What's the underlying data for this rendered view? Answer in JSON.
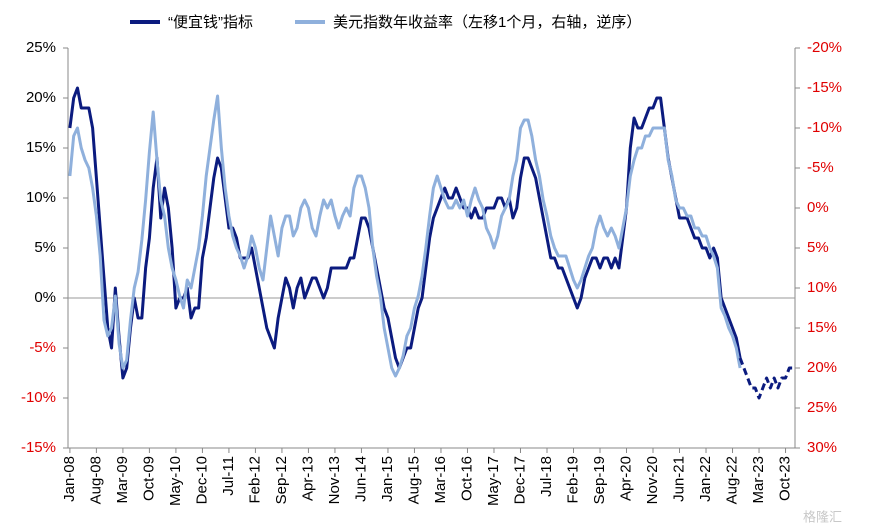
{
  "chart_data": {
    "type": "line",
    "watermark": "格隆汇",
    "categories": [
      "Jan-08",
      null,
      null,
      null,
      null,
      null,
      null,
      "Aug-08",
      null,
      null,
      null,
      null,
      null,
      null,
      "Mar-09",
      null,
      null,
      null,
      null,
      null,
      null,
      "Oct-09",
      null,
      null,
      null,
      null,
      null,
      null,
      "May-10",
      null,
      null,
      null,
      null,
      null,
      null,
      "Dec-10",
      null,
      null,
      null,
      null,
      null,
      null,
      "Jul-11",
      null,
      null,
      null,
      null,
      null,
      null,
      "Feb-12",
      null,
      null,
      null,
      null,
      null,
      null,
      "Sep-12",
      null,
      null,
      null,
      null,
      null,
      null,
      "Apr-13",
      null,
      null,
      null,
      null,
      null,
      null,
      "Nov-13",
      null,
      null,
      null,
      null,
      null,
      null,
      "Jun-14",
      null,
      null,
      null,
      null,
      null,
      null,
      "Jan-15",
      null,
      null,
      null,
      null,
      null,
      null,
      "Aug-15",
      null,
      null,
      null,
      null,
      null,
      null,
      "Mar-16",
      null,
      null,
      null,
      null,
      null,
      null,
      "Oct-16",
      null,
      null,
      null,
      null,
      null,
      null,
      "May-17",
      null,
      null,
      null,
      null,
      null,
      null,
      "Dec-17",
      null,
      null,
      null,
      null,
      null,
      null,
      "Jul-18",
      null,
      null,
      null,
      null,
      null,
      null,
      "Feb-19",
      null,
      null,
      null,
      null,
      null,
      null,
      "Sep-19",
      null,
      null,
      null,
      null,
      null,
      null,
      "Apr-20",
      null,
      null,
      null,
      null,
      null,
      null,
      "Nov-20",
      null,
      null,
      null,
      null,
      null,
      null,
      "Jun-21",
      null,
      null,
      null,
      null,
      null,
      null,
      "Jan-22",
      null,
      null,
      null,
      null,
      null,
      null,
      "Aug-22",
      null,
      null,
      null,
      null,
      null,
      null,
      "Mar-23",
      null,
      null,
      null,
      null,
      null,
      null,
      "Oct-23",
      null,
      null
    ],
    "series": [
      {
        "name": "“便宜钱”指标",
        "color": "#0b1b7f",
        "values": [
          17,
          20,
          21,
          19,
          19,
          19,
          17,
          12,
          7,
          2,
          -3,
          -5,
          1,
          -4,
          -8,
          -7,
          -3,
          0,
          -2,
          -2,
          3,
          6,
          11,
          14,
          8,
          11,
          9,
          5,
          -1,
          0,
          0,
          1,
          -2,
          -1,
          -1,
          4,
          6,
          9,
          12,
          14,
          13,
          10,
          7,
          7,
          6,
          4,
          4,
          4,
          5,
          3,
          1,
          -1,
          -3,
          -4,
          -5,
          -2,
          0,
          2,
          1,
          -1,
          1,
          2,
          0,
          1,
          2,
          2,
          1,
          0,
          1,
          3,
          3,
          3,
          3,
          3,
          4,
          4,
          6,
          8,
          8,
          7,
          5,
          3,
          1,
          -1,
          -2,
          -4,
          -6,
          -7,
          -6,
          -5,
          -5,
          -3,
          -1,
          0,
          3,
          6,
          8,
          9,
          10,
          11,
          10,
          10,
          11,
          10,
          9,
          9,
          8,
          9,
          8,
          8,
          9,
          9,
          9,
          10,
          10,
          9,
          10,
          8,
          9,
          12,
          14,
          14,
          13,
          12,
          10,
          8,
          6,
          4,
          4,
          3,
          3,
          2,
          1,
          0,
          -1,
          0,
          2,
          3,
          4,
          4,
          3,
          4,
          4,
          3,
          4,
          3,
          6,
          9,
          15,
          18,
          17,
          17,
          18,
          19,
          19,
          20,
          20,
          17,
          14,
          12,
          10,
          8,
          8,
          8,
          7,
          6,
          6,
          5,
          5,
          4,
          5,
          4,
          0,
          -1,
          -2,
          -3,
          -4,
          -6,
          null,
          null,
          null,
          null,
          null,
          null,
          null,
          null,
          null,
          null,
          null,
          null,
          null,
          null
        ]
      },
      {
        "name": "美元指数年收益率（左移1个月，右轴，逆序）",
        "color": "#8fb0dc",
        "axis": "y2",
        "values": [
          -4,
          -9,
          -10,
          -7.5,
          -6,
          -5,
          -2.5,
          1,
          6,
          14,
          16,
          15,
          11,
          17,
          20,
          19,
          14,
          10,
          8,
          4,
          -1,
          -7,
          -12,
          -6,
          -1,
          1,
          5,
          7.5,
          9,
          11,
          12.5,
          9,
          10,
          7.5,
          5,
          1,
          -4,
          -7.5,
          -11,
          -14,
          -7.5,
          -2.5,
          1,
          3.5,
          5,
          6,
          7.5,
          6,
          3.5,
          5,
          7.5,
          9,
          5,
          1,
          3.5,
          6,
          2.5,
          1,
          1,
          3.5,
          2.5,
          0,
          -1,
          0,
          2.5,
          3.5,
          1,
          -1,
          0,
          -1,
          1,
          2.5,
          1,
          0,
          1,
          -2.5,
          -4,
          -4,
          -2.5,
          0,
          5,
          8.5,
          11,
          15,
          17.5,
          20,
          21,
          20,
          18.5,
          16,
          15,
          12.5,
          11,
          8.5,
          5,
          1,
          -2.5,
          -4,
          -2.5,
          -1,
          0,
          0,
          -1,
          0,
          -1,
          1,
          -1,
          -2.5,
          -1,
          0,
          2.5,
          3.5,
          5,
          3.5,
          1,
          0,
          -1,
          -4,
          -6,
          -10,
          -11,
          -11,
          -9,
          -6,
          -4,
          -1,
          1,
          3.5,
          5,
          6,
          6,
          6,
          7.5,
          9,
          10,
          9,
          7.5,
          6,
          5,
          2.5,
          1,
          2.5,
          3.5,
          2.5,
          3.5,
          5,
          2.5,
          0,
          -4,
          -6,
          -7.5,
          -7.5,
          -9,
          -9,
          -10,
          -10,
          -10,
          -10,
          -6,
          -4,
          -1,
          0,
          0,
          1,
          1,
          2.5,
          2.5,
          3.5,
          3.5,
          5,
          6,
          7.5,
          12.5,
          13.5,
          15,
          16,
          17.5,
          20,
          null,
          null,
          null,
          null,
          null,
          null,
          null,
          null,
          null,
          null,
          null,
          null,
          null,
          null
        ]
      },
      {
        "color": "#0b1b7f",
        "style": "dashed",
        "values": [
          null,
          null,
          null,
          null,
          null,
          null,
          null,
          null,
          null,
          null,
          null,
          null,
          null,
          null,
          null,
          null,
          null,
          null,
          null,
          null,
          null,
          null,
          null,
          null,
          null,
          null,
          null,
          null,
          null,
          null,
          null,
          null,
          null,
          null,
          null,
          null,
          null,
          null,
          null,
          null,
          null,
          null,
          null,
          null,
          null,
          null,
          null,
          null,
          null,
          null,
          null,
          null,
          null,
          null,
          null,
          null,
          null,
          null,
          null,
          null,
          null,
          null,
          null,
          null,
          null,
          null,
          null,
          null,
          null,
          null,
          null,
          null,
          null,
          null,
          null,
          null,
          null,
          null,
          null,
          null,
          null,
          null,
          null,
          null,
          null,
          null,
          null,
          null,
          null,
          null,
          null,
          null,
          null,
          null,
          null,
          null,
          null,
          null,
          null,
          null,
          null,
          null,
          null,
          null,
          null,
          null,
          null,
          null,
          null,
          null,
          null,
          null,
          null,
          null,
          null,
          null,
          null,
          null,
          null,
          null,
          null,
          null,
          null,
          null,
          null,
          null,
          null,
          null,
          null,
          null,
          null,
          null,
          null,
          null,
          null,
          null,
          null,
          null,
          null,
          null,
          null,
          null,
          null,
          null,
          null,
          null,
          null,
          null,
          null,
          null,
          null,
          null,
          null,
          null,
          null,
          null,
          null,
          null,
          null,
          null,
          null,
          null,
          null,
          null,
          null,
          null,
          null,
          null,
          null,
          null,
          null,
          null,
          null,
          null,
          null,
          null,
          null,
          -6,
          -7,
          -8,
          -9,
          -9,
          -10,
          -9,
          -8,
          -9,
          -8,
          -9,
          -8,
          -8,
          -7,
          -7
        ]
      }
    ],
    "ylim": [
      -15,
      25
    ],
    "yticks": [
      {
        "value": -15,
        "label": "-15%"
      },
      {
        "value": -10,
        "label": "-10%"
      },
      {
        "value": -5,
        "label": "-5%"
      },
      {
        "value": 0,
        "label": "0%"
      },
      {
        "value": 5,
        "label": "5%"
      },
      {
        "value": 10,
        "label": "10%"
      },
      {
        "value": 15,
        "label": "15%"
      },
      {
        "value": 20,
        "label": "20%"
      },
      {
        "value": 25,
        "label": "25%"
      }
    ],
    "y2lim": [
      30,
      -20
    ],
    "y2_inverted": true,
    "y2ticks": [
      {
        "value": -20,
        "label": "-20%"
      },
      {
        "value": -15,
        "label": "-15%"
      },
      {
        "value": -10,
        "label": "-10%"
      },
      {
        "value": -5,
        "label": "-5%"
      },
      {
        "value": 0,
        "label": "0%"
      },
      {
        "value": 5,
        "label": "5%"
      },
      {
        "value": 10,
        "label": "10%"
      },
      {
        "value": 15,
        "label": "15%"
      },
      {
        "value": 20,
        "label": "20%"
      },
      {
        "value": 25,
        "label": "25%"
      },
      {
        "value": 30,
        "label": "30%"
      }
    ],
    "negative_tick_color": "#e00000",
    "y2_tick_color": "#e00000",
    "legend": "top"
  }
}
